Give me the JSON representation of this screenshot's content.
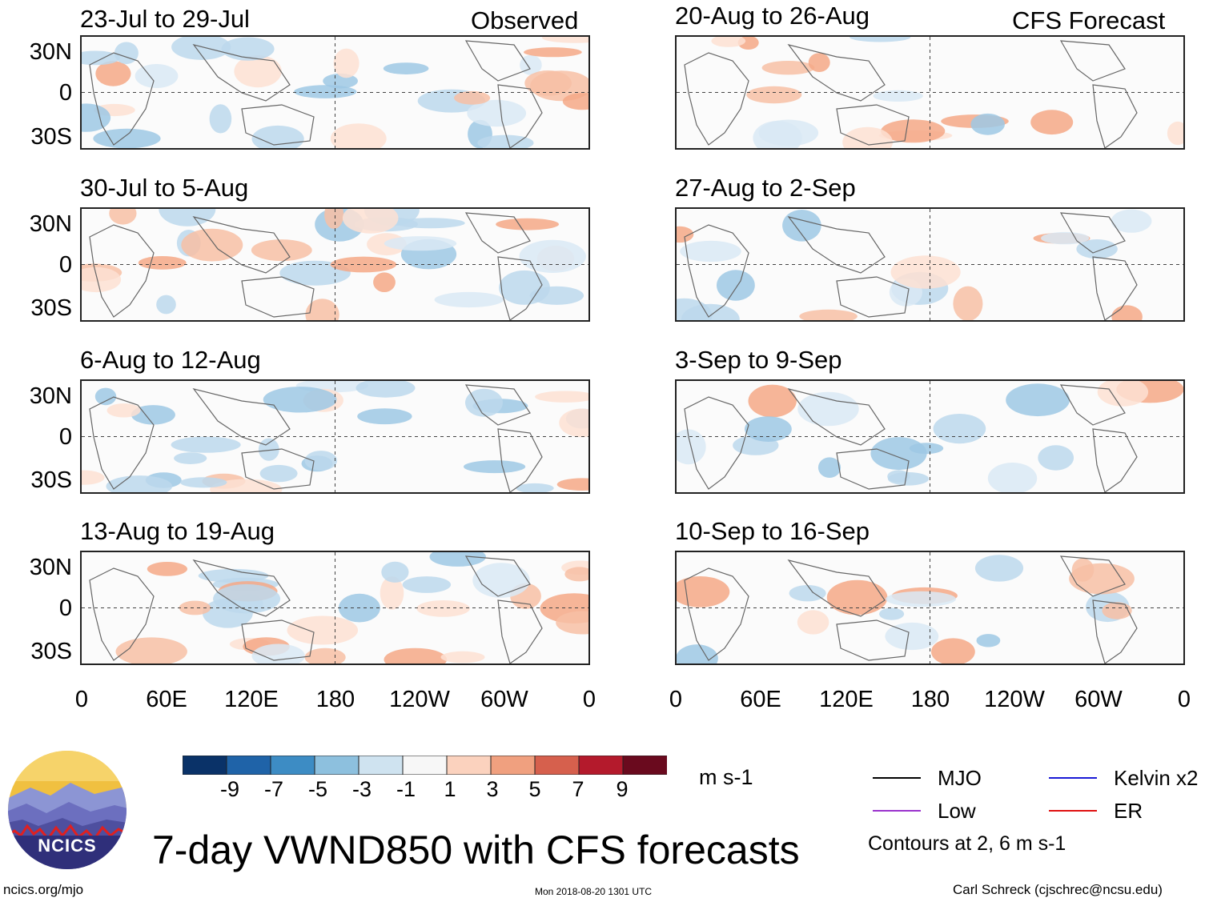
{
  "chart_data": {
    "type": "heatmap",
    "title": "7-day VWND850 with CFS forecasts",
    "variable": "850 hPa meridional wind anomaly",
    "units": "m s-1",
    "x_range": [
      0,
      360
    ],
    "y_range": [
      -40,
      40
    ],
    "x_ticks": [
      "0",
      "60E",
      "120E",
      "180",
      "120W",
      "60W",
      "0"
    ],
    "y_ticks": [
      "30N",
      "0",
      "30S"
    ],
    "colorbar_ticks": [
      "-9",
      "-7",
      "-5",
      "-3",
      "-1",
      "1",
      "3",
      "5",
      "7",
      "9"
    ],
    "colorbar_colors": [
      "#0a3268",
      "#1f63a8",
      "#3d8cc4",
      "#8dc0de",
      "#cfe3f0",
      "#f7f7f7",
      "#fbd2be",
      "#f0a07f",
      "#d6604d",
      "#b41a2c",
      "#6a0a1e"
    ],
    "contour_note": "Contours at 2, 6 m s-1",
    "contour_legend": [
      {
        "label": "MJO",
        "color": "#000000"
      },
      {
        "label": "Kelvin x2",
        "color": "#1a1ad6"
      },
      {
        "label": "Low",
        "color": "#9a32cd"
      },
      {
        "label": "ER",
        "color": "#e01010"
      }
    ],
    "panels": [
      {
        "period": "23-Jul to 29-Jul",
        "label": "Observed",
        "column": "observed"
      },
      {
        "period": "30-Jul to 5-Aug",
        "label": "",
        "column": "observed"
      },
      {
        "period": "6-Aug to 12-Aug",
        "label": "",
        "column": "observed"
      },
      {
        "period": "13-Aug to 19-Aug",
        "label": "",
        "column": "observed"
      },
      {
        "period": "20-Aug to 26-Aug",
        "label": "CFS Forecast",
        "column": "forecast"
      },
      {
        "period": "27-Aug to 2-Sep",
        "label": "",
        "column": "forecast"
      },
      {
        "period": "3-Sep to 9-Sep",
        "label": "",
        "column": "forecast"
      },
      {
        "period": "10-Sep to 16-Sep",
        "label": "",
        "column": "forecast"
      }
    ]
  },
  "logo": {
    "text": "NCICS"
  },
  "footer": {
    "site": "ncics.org/mjo",
    "timestamp": "Mon 2018-08-20 1301 UTC",
    "author": "Carl Schreck (cjschrec@ncsu.edu)"
  }
}
